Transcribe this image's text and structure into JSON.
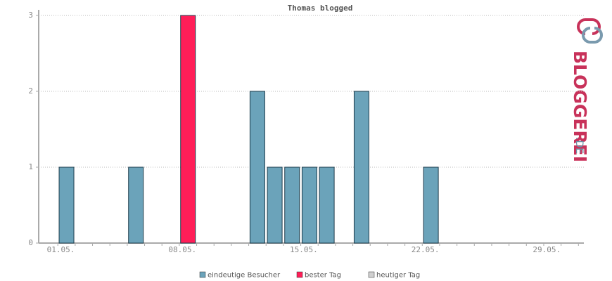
{
  "chart_data": {
    "type": "bar",
    "title": "Thomas blogged",
    "categories": [
      "01.05.",
      null,
      null,
      null,
      null,
      null,
      null,
      "08.05.",
      null,
      null,
      null,
      null,
      null,
      null,
      "15.05.",
      null,
      null,
      null,
      null,
      null,
      null,
      "22.05.",
      null,
      null,
      null,
      null,
      null,
      null,
      "29.05.",
      null,
      null
    ],
    "series": [
      {
        "name": "eindeutige Besucher",
        "color": "#6ba3ba",
        "values": [
          1,
          null,
          null,
          null,
          1,
          null,
          null,
          null,
          null,
          null,
          null,
          2,
          1,
          1,
          1,
          1,
          null,
          2,
          null,
          null,
          null,
          1,
          null,
          null,
          null,
          null,
          null,
          null,
          null,
          null,
          null
        ]
      },
      {
        "name": "bester Tag",
        "color": "#ff1e58",
        "values": [
          null,
          null,
          null,
          null,
          null,
          null,
          null,
          3,
          null,
          null,
          null,
          null,
          null,
          null,
          null,
          null,
          null,
          null,
          null,
          null,
          null,
          null,
          null,
          null,
          null,
          null,
          null,
          null,
          null,
          null,
          null
        ]
      },
      {
        "name": "heutiger Tag",
        "color": "#d0d0d0",
        "values": [
          null,
          null,
          null,
          null,
          null,
          null,
          null,
          null,
          null,
          null,
          null,
          null,
          null,
          null,
          null,
          null,
          null,
          null,
          null,
          null,
          null,
          null,
          null,
          null,
          null,
          null,
          null,
          null,
          null,
          null,
          null
        ]
      }
    ],
    "ylim": [
      0,
      3
    ],
    "yticks": [
      0,
      1,
      2,
      3
    ],
    "grid": true
  },
  "branding": {
    "name": "BLOGGEREI",
    "suffix": ".DE"
  }
}
